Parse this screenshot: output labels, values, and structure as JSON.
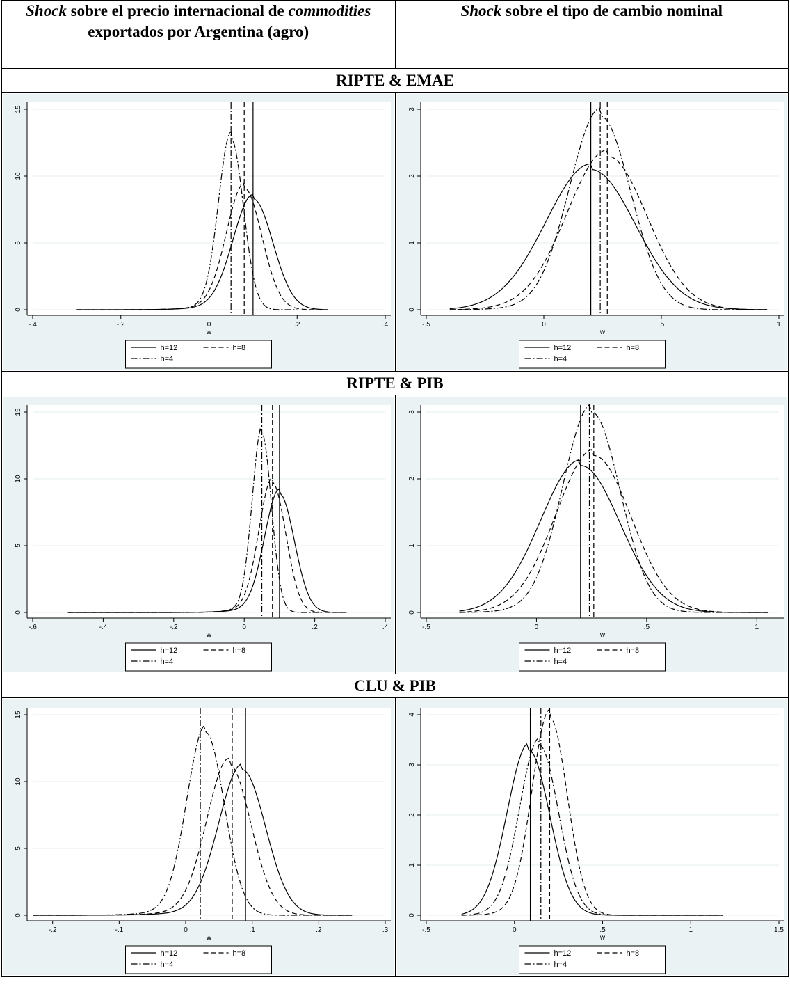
{
  "header": {
    "col1": {
      "word": "Shock",
      "mid": " sobre el precio internacional de ",
      "word2": "commodities",
      "tail": " exportados por Argentina (agro)"
    },
    "col2": {
      "word": "Shock",
      "tail": " sobre el tipo de cambio nominal"
    }
  },
  "sections": [
    "RIPTE & EMAE",
    "RIPTE & PIB",
    "CLU & PIB"
  ],
  "legend": {
    "h12": "h=12",
    "h8": "h=8",
    "h4": "h=4"
  },
  "chart_data": [
    {
      "type": "line",
      "section": "RIPTE & EMAE",
      "panel": "commodities",
      "xlabel": "w",
      "xlim": [
        -0.4,
        0.4
      ],
      "xticks": [
        -0.4,
        -0.2,
        0,
        0.2,
        0.4
      ],
      "xticklabels": [
        "-.4",
        "-.2",
        "0",
        ".2",
        ".4"
      ],
      "ylim": [
        0,
        15
      ],
      "yticks": [
        0,
        5,
        10,
        15
      ],
      "yticklabels": [
        "0",
        "5",
        "10",
        "15"
      ],
      "series": [
        {
          "name": "h=12",
          "style": "solid",
          "peak_x": 0.1,
          "peak_y": 8.3,
          "sd": 0.045,
          "tail_min": -0.3,
          "tail_max": 0.27,
          "vline": 0.1
        },
        {
          "name": "h=8",
          "style": "dash",
          "peak_x": 0.08,
          "peak_y": 9.1,
          "sd": 0.04,
          "tail_min": -0.3,
          "tail_max": 0.24,
          "vline": 0.08
        },
        {
          "name": "h=4",
          "style": "dashdot",
          "peak_x": 0.05,
          "peak_y": 12.8,
          "sd": 0.028,
          "tail_min": -0.3,
          "tail_max": 0.2,
          "vline": 0.05
        }
      ]
    },
    {
      "type": "line",
      "section": "RIPTE & EMAE",
      "panel": "tipo_de_cambio",
      "xlabel": "w",
      "xlim": [
        -0.5,
        1
      ],
      "xticks": [
        -0.5,
        0,
        0.5,
        1
      ],
      "xticklabels": [
        "-.5",
        "0",
        ".5",
        "1"
      ],
      "ylim": [
        0,
        3
      ],
      "yticks": [
        0,
        1,
        2,
        3
      ],
      "yticklabels": [
        "0",
        "1",
        "2",
        "3"
      ],
      "series": [
        {
          "name": "h=12",
          "style": "solid",
          "peak_x": 0.2,
          "peak_y": 2.1,
          "sd": 0.19,
          "tail_min": -0.4,
          "tail_max": 0.95,
          "vline": 0.2
        },
        {
          "name": "h=8",
          "style": "dash",
          "peak_x": 0.27,
          "peak_y": 2.3,
          "sd": 0.17,
          "tail_min": -0.4,
          "tail_max": 0.95,
          "vline": 0.27
        },
        {
          "name": "h=4",
          "style": "dashdot",
          "peak_x": 0.24,
          "peak_y": 2.9,
          "sd": 0.13,
          "tail_min": -0.4,
          "tail_max": 0.95,
          "vline": 0.24
        }
      ]
    },
    {
      "type": "line",
      "section": "RIPTE & PIB",
      "panel": "commodities",
      "xlabel": "w",
      "xlim": [
        -0.6,
        0.4
      ],
      "xticks": [
        -0.6,
        -0.4,
        -0.2,
        0,
        0.2,
        0.4
      ],
      "xticklabels": [
        "-.6",
        "-.4",
        "-.2",
        "0",
        ".2",
        ".4"
      ],
      "ylim": [
        0,
        15
      ],
      "yticks": [
        0,
        5,
        10,
        15
      ],
      "yticklabels": [
        "0",
        "5",
        "10",
        "15"
      ],
      "series": [
        {
          "name": "h=12",
          "style": "solid",
          "peak_x": 0.1,
          "peak_y": 8.9,
          "sd": 0.042,
          "tail_min": -0.5,
          "tail_max": 0.29,
          "vline": 0.1
        },
        {
          "name": "h=8",
          "style": "dash",
          "peak_x": 0.08,
          "peak_y": 9.7,
          "sd": 0.038,
          "tail_min": -0.5,
          "tail_max": 0.27,
          "vline": 0.08
        },
        {
          "name": "h=4",
          "style": "dashdot",
          "peak_x": 0.05,
          "peak_y": 13.4,
          "sd": 0.027,
          "tail_min": -0.5,
          "tail_max": 0.22,
          "vline": 0.05
        }
      ]
    },
    {
      "type": "line",
      "section": "RIPTE & PIB",
      "panel": "tipo_de_cambio",
      "xlabel": "w",
      "xlim": [
        -0.5,
        1.1
      ],
      "xticks": [
        -0.5,
        0,
        0.5,
        1
      ],
      "xticklabels": [
        "-.5",
        "0",
        ".5",
        "1"
      ],
      "ylim": [
        0,
        3
      ],
      "yticks": [
        0,
        1,
        2,
        3
      ],
      "yticklabels": [
        "0",
        "1",
        "2",
        "3"
      ],
      "series": [
        {
          "name": "h=12",
          "style": "solid",
          "peak_x": 0.2,
          "peak_y": 2.2,
          "sd": 0.18,
          "tail_min": -0.35,
          "tail_max": 1.05,
          "vline": 0.2
        },
        {
          "name": "h=8",
          "style": "dash",
          "peak_x": 0.26,
          "peak_y": 2.35,
          "sd": 0.17,
          "tail_min": -0.35,
          "tail_max": 1.05,
          "vline": 0.26
        },
        {
          "name": "h=4",
          "style": "dashdot",
          "peak_x": 0.25,
          "peak_y": 3.0,
          "sd": 0.13,
          "tail_min": -0.35,
          "tail_max": 1.05,
          "vline": 0.24
        }
      ]
    },
    {
      "type": "line",
      "section": "CLU & PIB",
      "panel": "commodities",
      "xlabel": "w",
      "xlim": [
        -0.23,
        0.3
      ],
      "xticks": [
        -0.2,
        -0.1,
        0,
        0.1,
        0.2,
        0.3
      ],
      "xticklabels": [
        "-.2",
        "-.1",
        "0",
        ".1",
        ".2",
        ".3"
      ],
      "ylim": [
        0,
        15
      ],
      "yticks": [
        0,
        5,
        10,
        15
      ],
      "yticklabels": [
        "0",
        "5",
        "10",
        "15"
      ],
      "series": [
        {
          "name": "h=12",
          "style": "solid",
          "peak_x": 0.085,
          "peak_y": 10.9,
          "sd": 0.035,
          "tail_min": -0.23,
          "tail_max": 0.25,
          "vline": 0.09
        },
        {
          "name": "h=8",
          "style": "dash",
          "peak_x": 0.065,
          "peak_y": 11.3,
          "sd": 0.033,
          "tail_min": -0.23,
          "tail_max": 0.25,
          "vline": 0.07
        },
        {
          "name": "h=4",
          "style": "dashdot",
          "peak_x": 0.03,
          "peak_y": 13.7,
          "sd": 0.028,
          "tail_min": -0.23,
          "tail_max": 0.25,
          "vline": 0.022
        }
      ]
    },
    {
      "type": "line",
      "section": "CLU & PIB",
      "panel": "tipo_de_cambio",
      "xlabel": "w",
      "xlim": [
        -0.5,
        1.5
      ],
      "xticks": [
        -0.5,
        0,
        0.5,
        1,
        1.5
      ],
      "xticklabels": [
        "-.5",
        "0",
        ".5",
        "1",
        "1.5"
      ],
      "ylim": [
        0,
        4
      ],
      "yticks": [
        0,
        1,
        2,
        3,
        4
      ],
      "yticklabels": [
        "0",
        "1",
        "2",
        "3",
        "4"
      ],
      "series": [
        {
          "name": "h=12",
          "style": "solid",
          "peak_x": 0.08,
          "peak_y": 3.3,
          "sd": 0.12,
          "tail_min": -0.3,
          "tail_max": 1.18,
          "vline": 0.09
        },
        {
          "name": "h=8",
          "style": "dash",
          "peak_x": 0.2,
          "peak_y": 3.95,
          "sd": 0.1,
          "tail_min": -0.3,
          "tail_max": 1.18,
          "vline": 0.2
        },
        {
          "name": "h=4",
          "style": "dashdot",
          "peak_x": 0.14,
          "peak_y": 3.4,
          "sd": 0.11,
          "tail_min": -0.3,
          "tail_max": 1.18,
          "vline": 0.15
        }
      ]
    }
  ]
}
